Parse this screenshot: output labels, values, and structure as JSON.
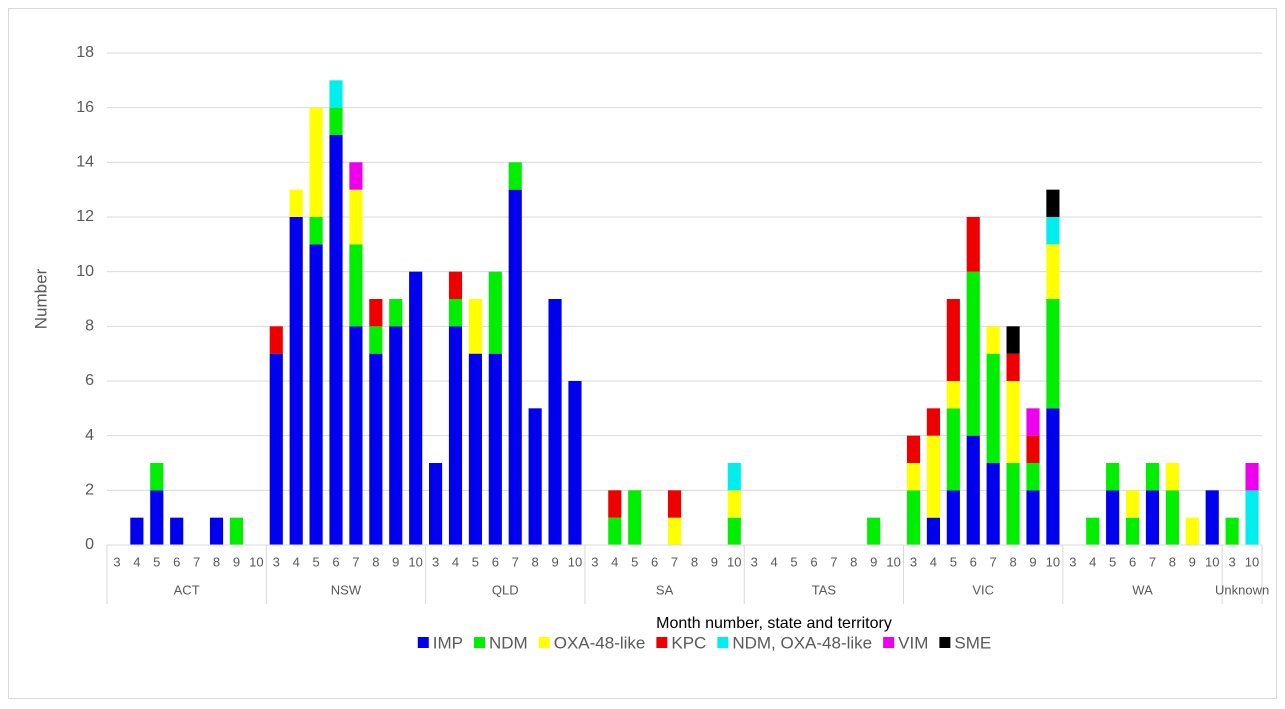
{
  "chart_data": {
    "type": "stacked_bar",
    "x_label": "Month number, state and territory",
    "y_label": "Number",
    "ylim": [
      0,
      18
    ],
    "yticks": [
      0,
      2,
      4,
      6,
      8,
      10,
      12,
      14,
      16,
      18
    ],
    "grid": true,
    "legend": "bottom",
    "groups": [
      {
        "label": "ACT",
        "categories": [
          "3",
          "4",
          "5",
          "6",
          "7",
          "8",
          "9",
          "10"
        ]
      },
      {
        "label": "NSW",
        "categories": [
          "3",
          "4",
          "5",
          "6",
          "7",
          "8",
          "9",
          "10"
        ]
      },
      {
        "label": "QLD",
        "categories": [
          "3",
          "4",
          "5",
          "6",
          "7",
          "8",
          "9",
          "10"
        ]
      },
      {
        "label": "SA",
        "categories": [
          "3",
          "4",
          "5",
          "6",
          "7",
          "8",
          "9",
          "10"
        ]
      },
      {
        "label": "TAS",
        "categories": [
          "3",
          "4",
          "5",
          "6",
          "7",
          "8",
          "9",
          "10"
        ]
      },
      {
        "label": "VIC",
        "categories": [
          "3",
          "4",
          "5",
          "6",
          "7",
          "8",
          "9",
          "10"
        ]
      },
      {
        "label": "WA",
        "categories": [
          "3",
          "4",
          "5",
          "6",
          "7",
          "8",
          "9",
          "10"
        ]
      },
      {
        "label": "Unknown",
        "categories": [
          "3",
          "10"
        ]
      }
    ],
    "series": [
      {
        "name": "IMP",
        "color": "#0000ee",
        "values": [
          0,
          1,
          2,
          1,
          0,
          1,
          0,
          0,
          7,
          12,
          11,
          15,
          8,
          7,
          8,
          10,
          3,
          8,
          7,
          7,
          13,
          5,
          9,
          6,
          0,
          0,
          0,
          0,
          0,
          0,
          0,
          0,
          0,
          0,
          0,
          0,
          0,
          0,
          0,
          0,
          0,
          1,
          2,
          4,
          3,
          0,
          2,
          5,
          0,
          0,
          2,
          0,
          2,
          0,
          0,
          2,
          0,
          0
        ]
      },
      {
        "name": "NDM",
        "color": "#00ee00",
        "values": [
          0,
          0,
          1,
          0,
          0,
          0,
          1,
          0,
          0,
          0,
          1,
          1,
          3,
          1,
          1,
          0,
          0,
          1,
          0,
          3,
          1,
          0,
          0,
          0,
          0,
          1,
          2,
          0,
          0,
          0,
          0,
          1,
          0,
          0,
          0,
          0,
          0,
          0,
          1,
          0,
          2,
          0,
          3,
          6,
          4,
          3,
          1,
          4,
          0,
          1,
          1,
          1,
          1,
          2,
          0,
          0,
          1,
          0
        ]
      },
      {
        "name": "OXA-48-like",
        "color": "#ffff00",
        "values": [
          0,
          0,
          0,
          0,
          0,
          0,
          0,
          0,
          0,
          1,
          4,
          0,
          2,
          0,
          0,
          0,
          0,
          0,
          2,
          0,
          0,
          0,
          0,
          0,
          0,
          0,
          0,
          0,
          1,
          0,
          0,
          1,
          0,
          0,
          0,
          0,
          0,
          0,
          0,
          0,
          1,
          3,
          1,
          0,
          1,
          3,
          0,
          2,
          0,
          0,
          0,
          1,
          0,
          1,
          1,
          0,
          0,
          0
        ]
      },
      {
        "name": "KPC",
        "color": "#ee0000",
        "values": [
          0,
          0,
          0,
          0,
          0,
          0,
          0,
          0,
          1,
          0,
          0,
          0,
          0,
          1,
          0,
          0,
          0,
          1,
          0,
          0,
          0,
          0,
          0,
          0,
          0,
          1,
          0,
          0,
          1,
          0,
          0,
          0,
          0,
          0,
          0,
          0,
          0,
          0,
          0,
          0,
          1,
          1,
          3,
          2,
          0,
          1,
          1,
          0,
          0,
          0,
          0,
          0,
          0,
          0,
          0,
          0,
          0,
          0
        ]
      },
      {
        "name": "NDM, OXA-48-like",
        "color": "#00eeee",
        "values": [
          0,
          0,
          0,
          0,
          0,
          0,
          0,
          0,
          0,
          0,
          0,
          1,
          0,
          0,
          0,
          0,
          0,
          0,
          0,
          0,
          0,
          0,
          0,
          0,
          0,
          0,
          0,
          0,
          0,
          0,
          0,
          1,
          0,
          0,
          0,
          0,
          0,
          0,
          0,
          0,
          0,
          0,
          0,
          0,
          0,
          0,
          0,
          1,
          0,
          0,
          0,
          0,
          0,
          0,
          0,
          0,
          0,
          2
        ]
      },
      {
        "name": "VIM",
        "color": "#ee00ee",
        "values": [
          0,
          0,
          0,
          0,
          0,
          0,
          0,
          0,
          0,
          0,
          0,
          0,
          1,
          0,
          0,
          0,
          0,
          0,
          0,
          0,
          0,
          0,
          0,
          0,
          0,
          0,
          0,
          0,
          0,
          0,
          0,
          0,
          0,
          0,
          0,
          0,
          0,
          0,
          0,
          0,
          0,
          0,
          0,
          0,
          0,
          0,
          1,
          0,
          0,
          0,
          0,
          0,
          0,
          0,
          0,
          0,
          0,
          1
        ]
      },
      {
        "name": "SME",
        "color": "#000000",
        "values": [
          0,
          0,
          0,
          0,
          0,
          0,
          0,
          0,
          0,
          0,
          0,
          0,
          0,
          0,
          0,
          0,
          0,
          0,
          0,
          0,
          0,
          0,
          0,
          0,
          0,
          0,
          0,
          0,
          0,
          0,
          0,
          0,
          0,
          0,
          0,
          0,
          0,
          0,
          0,
          0,
          0,
          0,
          0,
          0,
          0,
          1,
          0,
          1,
          0,
          0,
          0,
          0,
          0,
          0,
          0,
          0,
          0,
          0
        ]
      }
    ]
  }
}
